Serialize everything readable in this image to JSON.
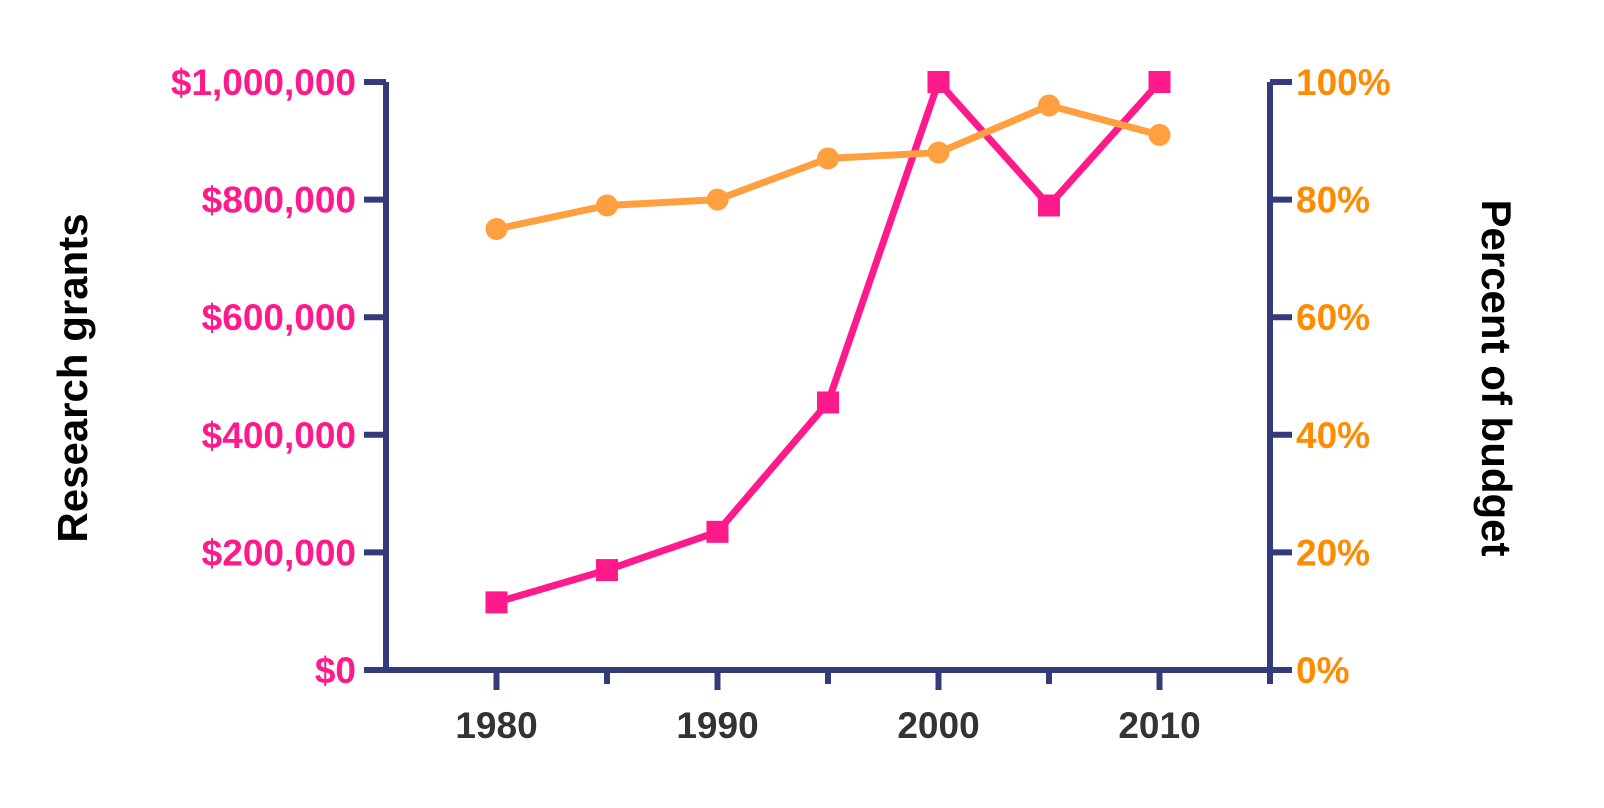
{
  "chart_data": {
    "type": "line",
    "title": "",
    "xlabel": "",
    "ylabel": "Research grants",
    "ylabel_right": "Percent of budget",
    "x": [
      1980,
      1985,
      1990,
      1995,
      2000,
      2005,
      2010
    ],
    "xlim": [
      1975,
      2015
    ],
    "x_ticks": [
      1980,
      1990,
      2000,
      2010
    ],
    "x_tick_labels": [
      "1980",
      "1990",
      "2000",
      "2010"
    ],
    "x_minor_ticks": [
      1980,
      1985,
      1990,
      1995,
      2000,
      2005,
      2010,
      2015
    ],
    "ylim_left": [
      0,
      1000000
    ],
    "y_ticks_left": [
      0,
      200000,
      400000,
      600000,
      800000,
      1000000
    ],
    "y_tick_labels_left": [
      "$0",
      "$200,000",
      "$400,000",
      "$600,000",
      "$800,000",
      "$1,000,000"
    ],
    "ylim_right": [
      0,
      100
    ],
    "y_ticks_right": [
      0,
      20,
      40,
      60,
      80,
      100
    ],
    "y_tick_labels_right": [
      "0%",
      "20%",
      "40%",
      "60%",
      "80%",
      "100%"
    ],
    "grid": false,
    "legend": "none",
    "series": [
      {
        "axis": "left",
        "marker": "square",
        "color": "#ff1a8c",
        "values": [
          115000,
          170000,
          235000,
          455000,
          1000000,
          790000,
          1000000
        ]
      },
      {
        "axis": "right",
        "marker": "circle",
        "color": "#ffa040",
        "values": [
          75,
          79,
          80,
          87,
          88,
          96,
          91
        ]
      }
    ],
    "colors": {
      "axis": "#343a7a",
      "left_ticks": "#ff1a8c",
      "right_ticks": "#ff8c00",
      "x_ticks": "#333333",
      "titles": "#000000"
    }
  }
}
